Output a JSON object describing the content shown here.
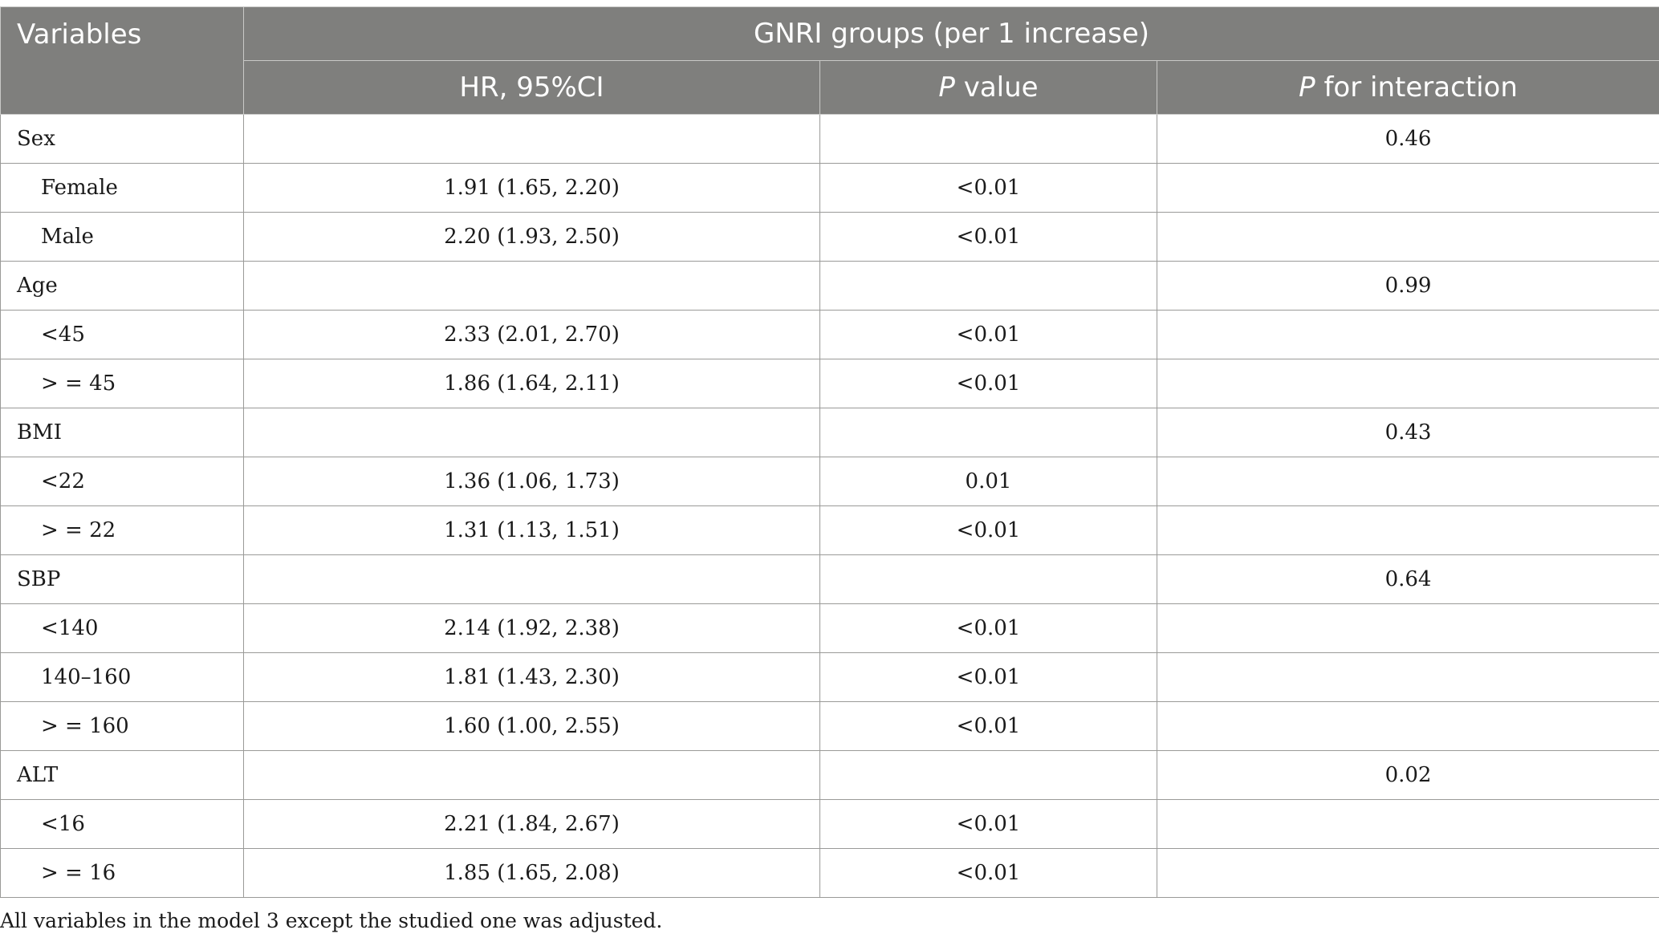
{
  "header": {
    "variables": "Variables",
    "group": "GNRI groups (per 1 increase)",
    "hr": "HR, 95%CI",
    "p_italic": "P",
    "p_value_rest": " value",
    "p_inter_rest": " for interaction"
  },
  "rows": [
    {
      "label": "Sex",
      "hr": "",
      "p": "",
      "pint": "0.46",
      "sub": false
    },
    {
      "label": "Female",
      "hr": "1.91 (1.65, 2.20)",
      "p": "<0.01",
      "pint": "",
      "sub": true
    },
    {
      "label": "Male",
      "hr": "2.20 (1.93, 2.50)",
      "p": "<0.01",
      "pint": "",
      "sub": true
    },
    {
      "label": "Age",
      "hr": "",
      "p": "",
      "pint": "0.99",
      "sub": false
    },
    {
      "label": "<45",
      "hr": "2.33 (2.01, 2.70)",
      "p": "<0.01",
      "pint": "",
      "sub": true
    },
    {
      "label": "> = 45",
      "hr": "1.86 (1.64, 2.11)",
      "p": "<0.01",
      "pint": "",
      "sub": true
    },
    {
      "label": "BMI",
      "hr": "",
      "p": "",
      "pint": "0.43",
      "sub": false
    },
    {
      "label": "<22",
      "hr": "1.36 (1.06, 1.73)",
      "p": "0.01",
      "pint": "",
      "sub": true
    },
    {
      "label": "> = 22",
      "hr": "1.31 (1.13, 1.51)",
      "p": "<0.01",
      "pint": "",
      "sub": true
    },
    {
      "label": "SBP",
      "hr": "",
      "p": "",
      "pint": "0.64",
      "sub": false
    },
    {
      "label": "<140",
      "hr": "2.14 (1.92, 2.38)",
      "p": "<0.01",
      "pint": "",
      "sub": true
    },
    {
      "label": "140–160",
      "hr": "1.81 (1.43, 2.30)",
      "p": "<0.01",
      "pint": "",
      "sub": true
    },
    {
      "label": "> = 160",
      "hr": "1.60 (1.00, 2.55)",
      "p": "<0.01",
      "pint": "",
      "sub": true
    },
    {
      "label": "ALT",
      "hr": "",
      "p": "",
      "pint": "0.02",
      "sub": false
    },
    {
      "label": "<16",
      "hr": "2.21 (1.84, 2.67)",
      "p": "<0.01",
      "pint": "",
      "sub": true
    },
    {
      "label": "> = 16",
      "hr": "1.85 (1.65, 2.08)",
      "p": "<0.01",
      "pint": "",
      "sub": true
    }
  ],
  "footnote": "All variables in the model 3 except the studied one was adjusted."
}
